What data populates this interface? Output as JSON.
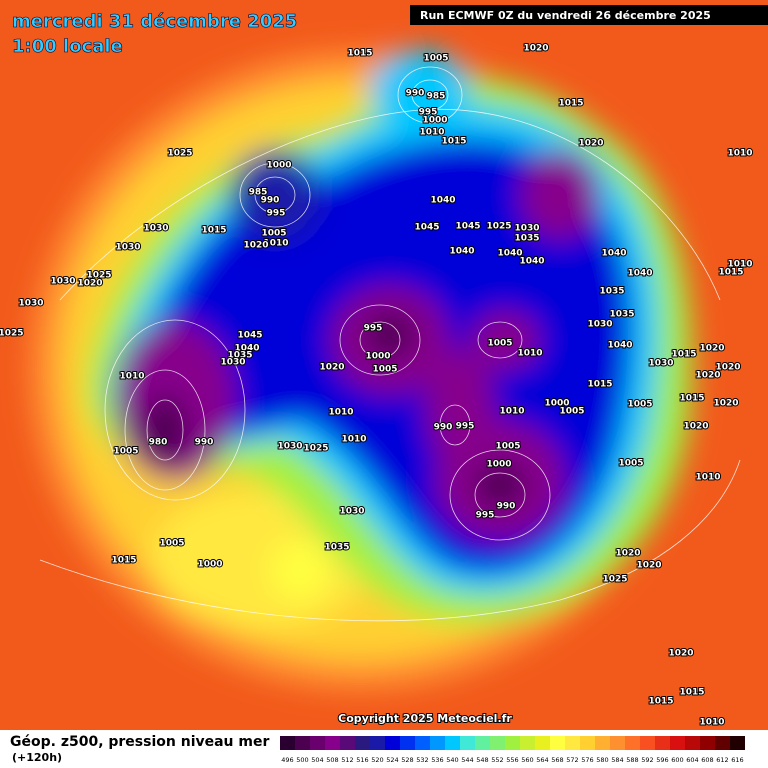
{
  "header": {
    "date": "mercredi 31 décembre 2025",
    "time": "1:00 locale",
    "run": "Run ECMWF 0Z du vendredi 26 décembre 2025"
  },
  "map": {
    "pressure_labels": [
      1015,
      1005,
      1020,
      990,
      985,
      995,
      1000,
      1010,
      1015,
      1015,
      1020,
      1010,
      1025,
      1000,
      985,
      990,
      995,
      1005,
      1010,
      1020,
      1015,
      1030,
      1030,
      1025,
      1020,
      1030,
      1030,
      1025,
      1040,
      1045,
      1045,
      1025,
      1030,
      1035,
      1040,
      1040,
      1040,
      1040,
      1040,
      1010,
      1015,
      1035,
      1035,
      1030,
      1040,
      995,
      1000,
      1005,
      1005,
      1010,
      1045,
      1040,
      1035,
      1030,
      1020,
      1010,
      1015,
      1030,
      1020,
      1020,
      1020,
      1015,
      1015,
      1005,
      1020,
      1000,
      1005,
      1010,
      1010,
      1010,
      990,
      995,
      980,
      990,
      1005,
      1030,
      1025,
      1005,
      1000,
      1005,
      1020,
      1010,
      990,
      995,
      1030,
      1035,
      1005,
      1015,
      1000,
      1020,
      1020,
      1025,
      1020,
      1015,
      1015,
      1010
    ]
  },
  "copyright": "Copyright 2025 Meteociel.fr",
  "footer": {
    "title": "Géop. z500, pression niveau mer",
    "subtitle": "(+120h)"
  },
  "legend": {
    "labels": [
      496,
      500,
      504,
      508,
      512,
      516,
      520,
      524,
      528,
      532,
      536,
      540,
      544,
      548,
      552,
      556,
      560,
      564,
      568,
      572,
      576,
      580,
      584,
      588,
      592,
      596,
      600,
      604,
      608,
      612,
      616
    ],
    "colors": [
      "#2a0030",
      "#4b0050",
      "#6a006e",
      "#86008c",
      "#5a0a78",
      "#2a1a80",
      "#1a1aa8",
      "#0000d8",
      "#0030f0",
      "#0060ff",
      "#0098ff",
      "#00c8ff",
      "#40e8d8",
      "#60f0a0",
      "#80f070",
      "#a0f040",
      "#c8f030",
      "#e8f020",
      "#ffff40",
      "#ffe840",
      "#ffd030",
      "#ffb030",
      "#ff9030",
      "#ff7028",
      "#f85020",
      "#e83018",
      "#d81010",
      "#b80808",
      "#900000",
      "#600000",
      "#200000"
    ]
  }
}
